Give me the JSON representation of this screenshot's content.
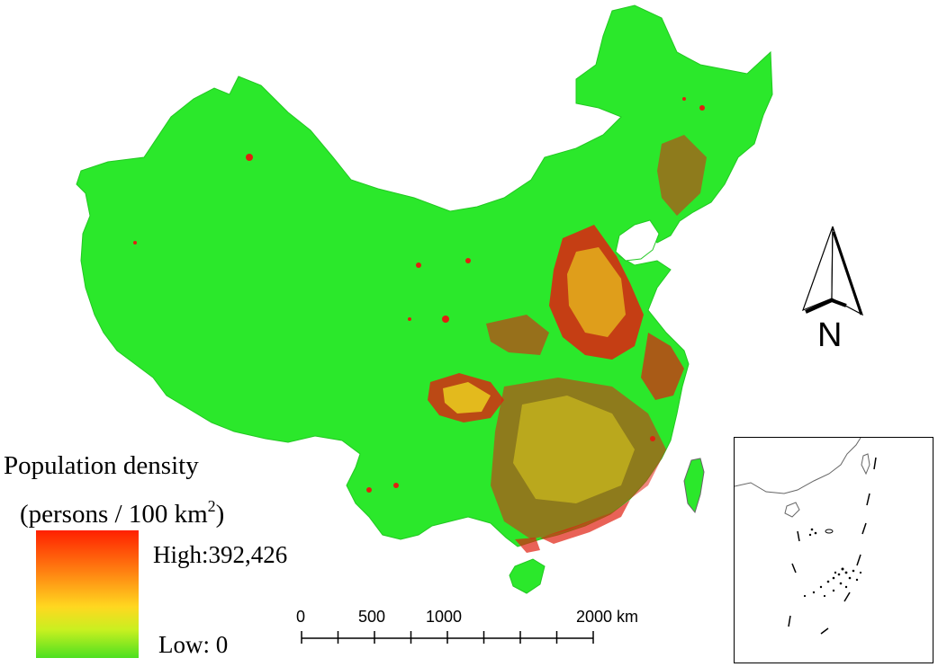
{
  "legend": {
    "title": "Population density",
    "unit_prefix": "(persons / 100 km",
    "unit_exp": "2",
    "unit_suffix": ")",
    "high_label": "High:392,426",
    "low_label": "Low: 0",
    "high_value": 392426,
    "low_value": 0,
    "colors": [
      "#ff2000",
      "#ff7a10",
      "#ffd820",
      "#c8f020",
      "#4ce020"
    ]
  },
  "scale_bar": {
    "labels": [
      "0",
      "500",
      "1000",
      "2000 km"
    ],
    "ticks_km": [
      0,
      250,
      500,
      750,
      1000,
      1250,
      1500,
      1750,
      2000
    ]
  },
  "north_arrow": {
    "label": "N"
  },
  "colors": {
    "land_low": "#2be82b",
    "dense_high": "#e02010",
    "medium": "#f0e020",
    "outline": "#555555"
  }
}
